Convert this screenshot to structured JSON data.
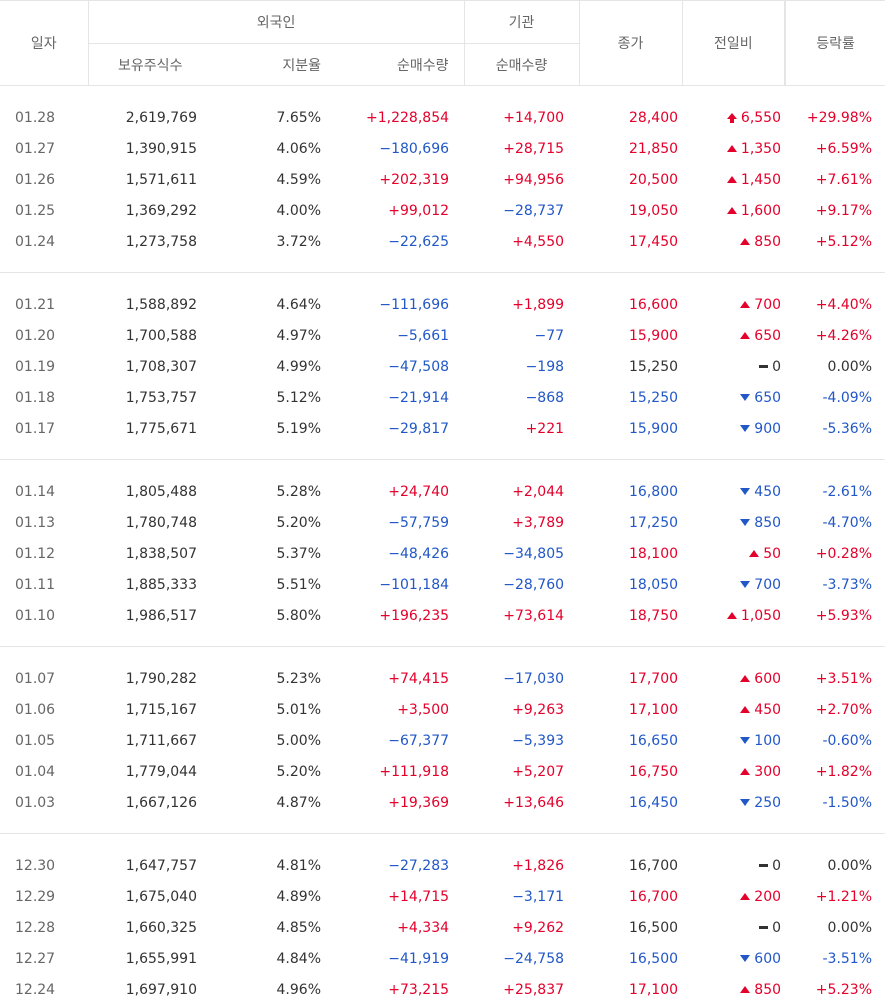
{
  "headers": {
    "date": "일자",
    "foreign": "외국인",
    "institution": "기관",
    "holdings": "보유주식수",
    "ratio": "지분율",
    "foreign_net": "순매수량",
    "inst_net": "순매수량",
    "close": "종가",
    "change": "전일비",
    "rate": "등락률"
  },
  "colors": {
    "up": "#e4002b",
    "down": "#2157c7",
    "neutral": "#333333"
  },
  "groups": [
    {
      "rows": [
        {
          "date": "01.28",
          "holdings": "2,619,769",
          "ratio": "7.65%",
          "foreign_net": "+1,228,854",
          "inst_net": "+14,700",
          "close": "28,400",
          "change": "6,550",
          "dir": "limit",
          "rate": "+29.98%"
        },
        {
          "date": "01.27",
          "holdings": "1,390,915",
          "ratio": "4.06%",
          "foreign_net": "−180,696",
          "inst_net": "+28,715",
          "close": "21,850",
          "change": "1,350",
          "dir": "up",
          "rate": "+6.59%"
        },
        {
          "date": "01.26",
          "holdings": "1,571,611",
          "ratio": "4.59%",
          "foreign_net": "+202,319",
          "inst_net": "+94,956",
          "close": "20,500",
          "change": "1,450",
          "dir": "up",
          "rate": "+7.61%"
        },
        {
          "date": "01.25",
          "holdings": "1,369,292",
          "ratio": "4.00%",
          "foreign_net": "+99,012",
          "inst_net": "−28,737",
          "close": "19,050",
          "change": "1,600",
          "dir": "up",
          "rate": "+9.17%"
        },
        {
          "date": "01.24",
          "holdings": "1,273,758",
          "ratio": "3.72%",
          "foreign_net": "−22,625",
          "inst_net": "+4,550",
          "close": "17,450",
          "change": "850",
          "dir": "up",
          "rate": "+5.12%"
        }
      ]
    },
    {
      "rows": [
        {
          "date": "01.21",
          "holdings": "1,588,892",
          "ratio": "4.64%",
          "foreign_net": "−111,696",
          "inst_net": "+1,899",
          "close": "16,600",
          "change": "700",
          "dir": "up",
          "rate": "+4.40%"
        },
        {
          "date": "01.20",
          "holdings": "1,700,588",
          "ratio": "4.97%",
          "foreign_net": "−5,661",
          "inst_net": "−77",
          "close": "15,900",
          "change": "650",
          "dir": "up",
          "rate": "+4.26%"
        },
        {
          "date": "01.19",
          "holdings": "1,708,307",
          "ratio": "4.99%",
          "foreign_net": "−47,508",
          "inst_net": "−198",
          "close": "15,250",
          "change": "0",
          "dir": "flat",
          "rate": "0.00%"
        },
        {
          "date": "01.18",
          "holdings": "1,753,757",
          "ratio": "5.12%",
          "foreign_net": "−21,914",
          "inst_net": "−868",
          "close": "15,250",
          "change": "650",
          "dir": "down",
          "rate": "-4.09%"
        },
        {
          "date": "01.17",
          "holdings": "1,775,671",
          "ratio": "5.19%",
          "foreign_net": "−29,817",
          "inst_net": "+221",
          "close": "15,900",
          "change": "900",
          "dir": "down",
          "rate": "-5.36%"
        }
      ]
    },
    {
      "rows": [
        {
          "date": "01.14",
          "holdings": "1,805,488",
          "ratio": "5.28%",
          "foreign_net": "+24,740",
          "inst_net": "+2,044",
          "close": "16,800",
          "change": "450",
          "dir": "down",
          "rate": "-2.61%"
        },
        {
          "date": "01.13",
          "holdings": "1,780,748",
          "ratio": "5.20%",
          "foreign_net": "−57,759",
          "inst_net": "+3,789",
          "close": "17,250",
          "change": "850",
          "dir": "down",
          "rate": "-4.70%"
        },
        {
          "date": "01.12",
          "holdings": "1,838,507",
          "ratio": "5.37%",
          "foreign_net": "−48,426",
          "inst_net": "−34,805",
          "close": "18,100",
          "change": "50",
          "dir": "up",
          "rate": "+0.28%"
        },
        {
          "date": "01.11",
          "holdings": "1,885,333",
          "ratio": "5.51%",
          "foreign_net": "−101,184",
          "inst_net": "−28,760",
          "close": "18,050",
          "change": "700",
          "dir": "down",
          "rate": "-3.73%"
        },
        {
          "date": "01.10",
          "holdings": "1,986,517",
          "ratio": "5.80%",
          "foreign_net": "+196,235",
          "inst_net": "+73,614",
          "close": "18,750",
          "change": "1,050",
          "dir": "up",
          "rate": "+5.93%"
        }
      ]
    },
    {
      "rows": [
        {
          "date": "01.07",
          "holdings": "1,790,282",
          "ratio": "5.23%",
          "foreign_net": "+74,415",
          "inst_net": "−17,030",
          "close": "17,700",
          "change": "600",
          "dir": "up",
          "rate": "+3.51%"
        },
        {
          "date": "01.06",
          "holdings": "1,715,167",
          "ratio": "5.01%",
          "foreign_net": "+3,500",
          "inst_net": "+9,263",
          "close": "17,100",
          "change": "450",
          "dir": "up",
          "rate": "+2.70%"
        },
        {
          "date": "01.05",
          "holdings": "1,711,667",
          "ratio": "5.00%",
          "foreign_net": "−67,377",
          "inst_net": "−5,393",
          "close": "16,650",
          "change": "100",
          "dir": "down",
          "rate": "-0.60%"
        },
        {
          "date": "01.04",
          "holdings": "1,779,044",
          "ratio": "5.20%",
          "foreign_net": "+111,918",
          "inst_net": "+5,207",
          "close": "16,750",
          "change": "300",
          "dir": "up",
          "rate": "+1.82%"
        },
        {
          "date": "01.03",
          "holdings": "1,667,126",
          "ratio": "4.87%",
          "foreign_net": "+19,369",
          "inst_net": "+13,646",
          "close": "16,450",
          "change": "250",
          "dir": "down",
          "rate": "-1.50%"
        }
      ]
    },
    {
      "rows": [
        {
          "date": "12.30",
          "holdings": "1,647,757",
          "ratio": "4.81%",
          "foreign_net": "−27,283",
          "inst_net": "+1,826",
          "close": "16,700",
          "change": "0",
          "dir": "flat",
          "rate": "0.00%"
        },
        {
          "date": "12.29",
          "holdings": "1,675,040",
          "ratio": "4.89%",
          "foreign_net": "+14,715",
          "inst_net": "−3,171",
          "close": "16,700",
          "change": "200",
          "dir": "up",
          "rate": "+1.21%"
        },
        {
          "date": "12.28",
          "holdings": "1,660,325",
          "ratio": "4.85%",
          "foreign_net": "+4,334",
          "inst_net": "+9,262",
          "close": "16,500",
          "change": "0",
          "dir": "flat",
          "rate": "0.00%"
        },
        {
          "date": "12.27",
          "holdings": "1,655,991",
          "ratio": "4.84%",
          "foreign_net": "−41,919",
          "inst_net": "−24,758",
          "close": "16,500",
          "change": "600",
          "dir": "down",
          "rate": "-3.51%"
        },
        {
          "date": "12.24",
          "holdings": "1,697,910",
          "ratio": "4.96%",
          "foreign_net": "+73,215",
          "inst_net": "+25,837",
          "close": "17,100",
          "change": "850",
          "dir": "up",
          "rate": "+5.23%"
        }
      ]
    }
  ]
}
